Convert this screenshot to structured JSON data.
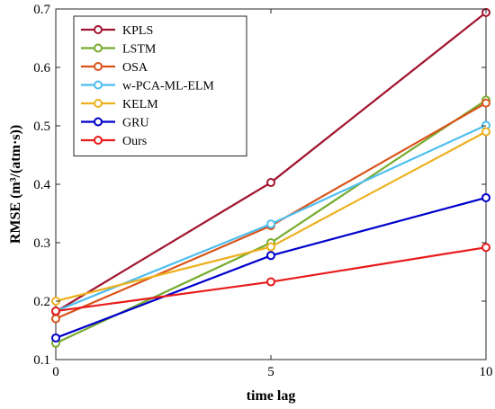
{
  "chart_data": {
    "type": "line",
    "xlabel": "time lag",
    "ylabel": "RMSE (m³/(atm·s))",
    "xlim": [
      0,
      10
    ],
    "ylim": [
      0.1,
      0.7
    ],
    "xticks": [
      0,
      5,
      10
    ],
    "xtick_labels": [
      "0",
      "5",
      "10"
    ],
    "yticks": [
      0.1,
      0.2,
      0.3,
      0.4,
      0.5,
      0.6,
      0.7
    ],
    "ytick_labels": [
      "0.1",
      "0.2",
      "0.3",
      "0.4",
      "0.5",
      "0.6",
      "0.7"
    ],
    "grid": false,
    "legend_position": "top-left",
    "x": [
      0,
      5,
      10
    ],
    "series": [
      {
        "name": "KPLS",
        "color": "#A2142F",
        "values": [
          0.182,
          0.403,
          0.694
        ]
      },
      {
        "name": "LSTM",
        "color": "#77AC30",
        "values": [
          0.128,
          0.3,
          0.544
        ]
      },
      {
        "name": "OSA",
        "color": "#D95319",
        "values": [
          0.17,
          0.329,
          0.539
        ]
      },
      {
        "name": "w-PCA-ML-ELM",
        "color": "#4DBEEE",
        "values": [
          0.183,
          0.332,
          0.501
        ]
      },
      {
        "name": "KELM",
        "color": "#EDB120",
        "values": [
          0.2,
          0.293,
          0.49
        ]
      },
      {
        "name": "GRU",
        "color": "#0000CC",
        "values": [
          0.137,
          0.278,
          0.377
        ]
      },
      {
        "name": "Ours",
        "color": "#E81A1A",
        "values": [
          0.183,
          0.233,
          0.292
        ]
      }
    ]
  }
}
